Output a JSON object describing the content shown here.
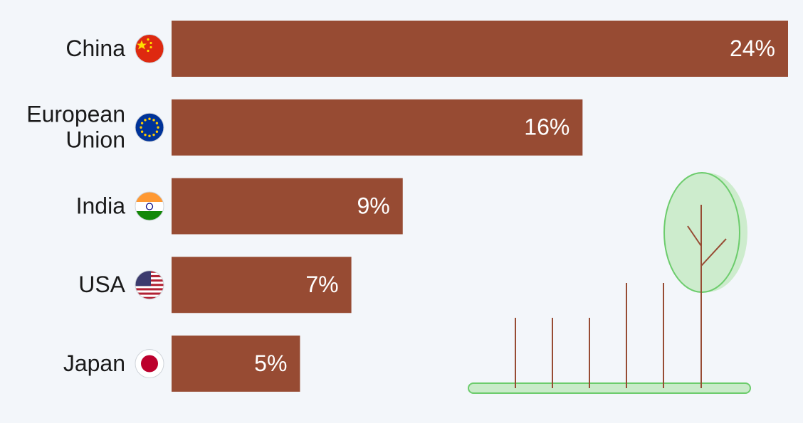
{
  "chart_data": {
    "type": "bar",
    "orientation": "horizontal",
    "categories": [
      "China",
      "European Union",
      "India",
      "USA",
      "Japan"
    ],
    "values": [
      24,
      16,
      9,
      7,
      5
    ],
    "value_labels": [
      "24%",
      "16%",
      "9%",
      "7%",
      "5%"
    ],
    "color": "#974b33"
  }
}
